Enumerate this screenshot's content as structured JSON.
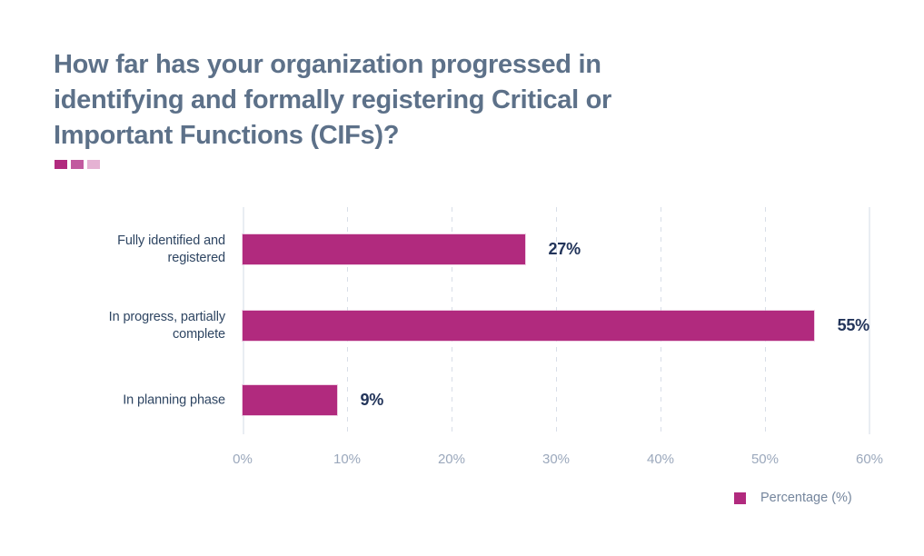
{
  "page": {
    "background": "#ffffff"
  },
  "header": {
    "title": "How far has your organization progressed in identifying and formally registering Critical or Important Functions (CIFs)?",
    "deco_colors": [
      "#b12a7e",
      "#c25a9f",
      "#e5b2d3"
    ]
  },
  "chart_data": {
    "type": "bar",
    "orientation": "horizontal",
    "title": "How far has your organization progressed in identifying and formally registering Critical or Important Functions (CIFs)?",
    "categories": [
      "Fully identified and registered",
      "In progress, partially complete",
      "In planning phase"
    ],
    "values": [
      27,
      55,
      9
    ],
    "value_labels": [
      "27%",
      "55%",
      "9%"
    ],
    "xlabel": "",
    "ylabel": "",
    "xlim": [
      0,
      60
    ],
    "tick_labels": [
      "0%",
      "10%",
      "20%",
      "30%",
      "40%",
      "50%",
      "60%"
    ],
    "grid": "vertical dashed gridlines at 10%-50%, solid edge lines at 0% and 60%",
    "bar_color": "#b12a7e",
    "legend": {
      "position": "bottom-right",
      "label": "Percentage (%)",
      "color": "#b12a7e"
    }
  }
}
